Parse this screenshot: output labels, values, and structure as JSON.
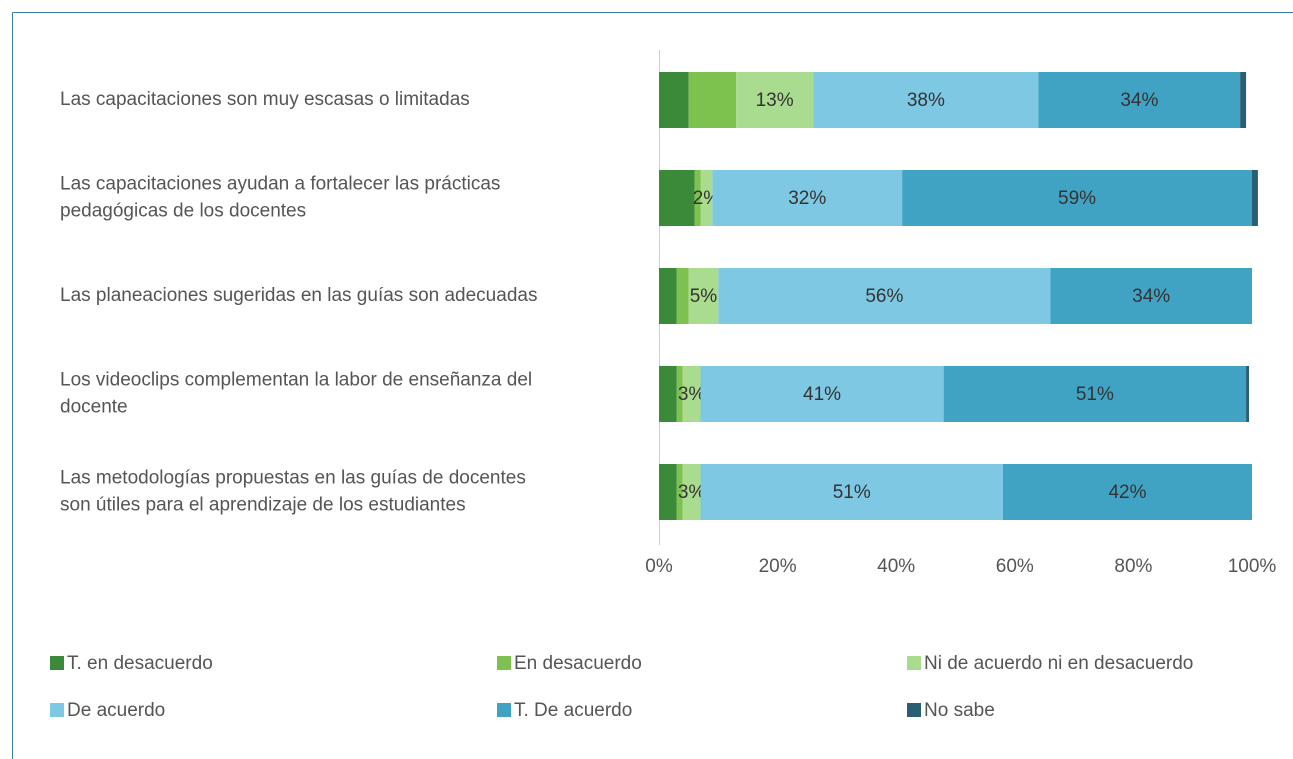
{
  "chart_data": {
    "type": "stacked-bar-horizontal",
    "categories": [
      [
        "Las capacitaciones son muy escasas o limitadas"
      ],
      [
        "Las capacitaciones ayudan a fortalecer las prácticas",
        "pedagógicas de los docentes"
      ],
      [
        "Las planeaciones sugeridas en las guías son adecuadas"
      ],
      [
        "Los videoclips complementan la labor de enseñanza del",
        "docente"
      ],
      [
        "Las metodologías propuestas en las guías de docentes",
        "son útiles para el aprendizaje de los estudiantes"
      ]
    ],
    "series": [
      {
        "name": "T. en desacuerdo",
        "color": "#3a8a3a",
        "values": [
          5,
          6,
          3,
          3,
          3
        ]
      },
      {
        "name": "En desacuerdo",
        "color": "#7dc14f",
        "values": [
          8,
          1,
          2,
          1,
          1
        ]
      },
      {
        "name": "Ni de acuerdo ni en desacuerdo",
        "color": "#a9dc8e",
        "values": [
          13,
          2,
          5,
          3,
          3
        ],
        "value_labels": [
          "13%",
          "2%",
          "5%",
          "3%",
          "3%"
        ]
      },
      {
        "name": "De acuerdo",
        "color": "#7ec8e3",
        "values": [
          38,
          32,
          56,
          41,
          51
        ],
        "value_labels": [
          "38%",
          "32%",
          "56%",
          "41%",
          "51%"
        ]
      },
      {
        "name": "T. De acuerdo",
        "color": "#41a3c4",
        "values": [
          34,
          59,
          34,
          51,
          42
        ],
        "value_labels": [
          "34%",
          "59%",
          "34%",
          "51%",
          "42%"
        ]
      },
      {
        "name": "No sabe",
        "color": "#2a5f73",
        "values": [
          1,
          1,
          0,
          0.5,
          0
        ]
      }
    ],
    "xlim": [
      0,
      100
    ],
    "xticks": [
      {
        "value": 0,
        "label": "0%"
      },
      {
        "value": 20,
        "label": "20%"
      },
      {
        "value": 40,
        "label": "40%"
      },
      {
        "value": 60,
        "label": "60%"
      },
      {
        "value": 80,
        "label": "80%"
      },
      {
        "value": 100,
        "label": "100%"
      }
    ],
    "grid": false,
    "legend": "bottom"
  }
}
